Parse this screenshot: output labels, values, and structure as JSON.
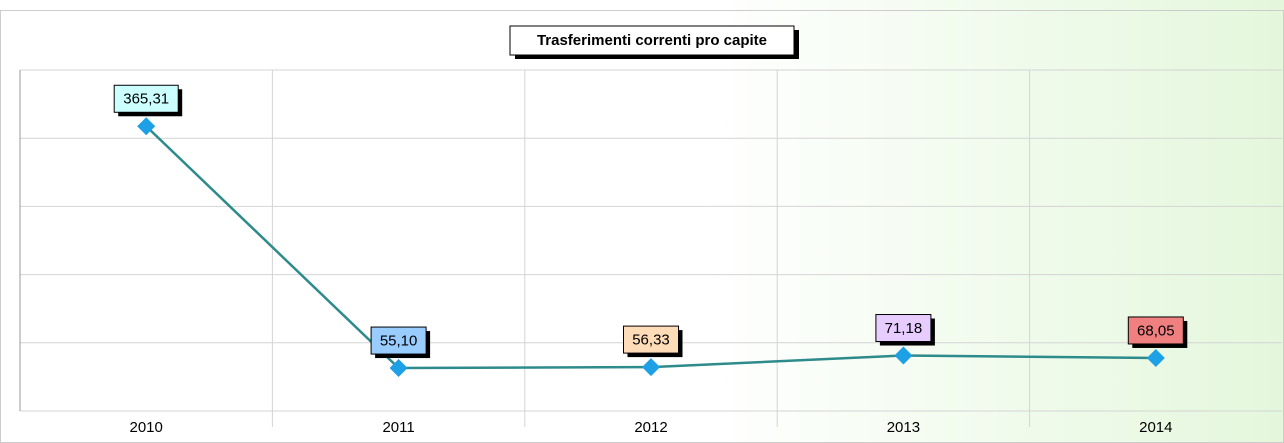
{
  "chart_data": {
    "type": "line",
    "title": "Trasferimenti correnti pro capite",
    "categories": [
      "2010",
      "2011",
      "2012",
      "2013",
      "2014"
    ],
    "values": [
      365.31,
      55.1,
      56.33,
      71.18,
      68.05
    ],
    "value_labels": [
      "365,31",
      "55,10",
      "56,33",
      "71,18",
      "68,05"
    ],
    "label_colors": [
      "#ccffff",
      "#99ccff",
      "#ffdcb8",
      "#e6ccff",
      "#f08080"
    ],
    "color": "#2e8b8b",
    "marker_color": "#1ea0e6",
    "ylim": [
      0,
      437.5
    ],
    "yticks": [
      0,
      87.5,
      175,
      262.5,
      350,
      437.5
    ],
    "grid": true
  }
}
